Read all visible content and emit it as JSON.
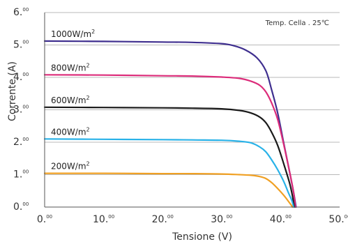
{
  "chart_data": {
    "type": "line",
    "xlabel": "Tensione (V)",
    "ylabel": "Corrente (A)",
    "xlim": [
      0,
      50
    ],
    "ylim": [
      0,
      6
    ],
    "x_ticks": [
      0,
      10,
      20,
      30,
      40,
      50
    ],
    "y_ticks": [
      0,
      1,
      2,
      3,
      4,
      5,
      6
    ],
    "x_tick_labels": [
      "0.",
      "10.",
      "20.",
      "30.",
      "40.",
      "50."
    ],
    "y_tick_labels": [
      "0.",
      "1.",
      "2.",
      "3.",
      "4.",
      "5.",
      "6."
    ],
    "tick_superscript": "00",
    "grid": "horizontal",
    "annotation": "Temp. Cella . 25℃",
    "series": [
      {
        "name": "1000W/m",
        "name_superscript": "2",
        "color": "#3f2f8f",
        "points": [
          [
            0,
            5.12
          ],
          [
            10,
            5.11
          ],
          [
            20,
            5.09
          ],
          [
            25,
            5.08
          ],
          [
            30,
            5.04
          ],
          [
            32,
            4.98
          ],
          [
            34,
            4.85
          ],
          [
            36,
            4.6
          ],
          [
            37.5,
            4.2
          ],
          [
            38.5,
            3.6
          ],
          [
            39.5,
            2.9
          ],
          [
            40.5,
            2.0
          ],
          [
            41.5,
            1.1
          ],
          [
            42.2,
            0.45
          ],
          [
            42.6,
            0
          ]
        ]
      },
      {
        "name": "800W/m",
        "name_superscript": "2",
        "color": "#dc2c7a",
        "points": [
          [
            0,
            4.08
          ],
          [
            10,
            4.07
          ],
          [
            20,
            4.05
          ],
          [
            25,
            4.04
          ],
          [
            30,
            4.01
          ],
          [
            33,
            3.97
          ],
          [
            35,
            3.88
          ],
          [
            36.5,
            3.75
          ],
          [
            37.5,
            3.55
          ],
          [
            38.5,
            3.2
          ],
          [
            39.5,
            2.7
          ],
          [
            40.5,
            1.95
          ],
          [
            41.5,
            1.1
          ],
          [
            42.2,
            0.45
          ],
          [
            42.5,
            0
          ]
        ]
      },
      {
        "name": "600W/m",
        "name_superscript": "2",
        "color": "#1a1a1a",
        "points": [
          [
            0,
            3.08
          ],
          [
            10,
            3.07
          ],
          [
            20,
            3.06
          ],
          [
            25,
            3.05
          ],
          [
            30,
            3.03
          ],
          [
            33,
            2.98
          ],
          [
            35,
            2.9
          ],
          [
            36.5,
            2.77
          ],
          [
            37.5,
            2.6
          ],
          [
            38.5,
            2.3
          ],
          [
            39.5,
            1.9
          ],
          [
            40.5,
            1.35
          ],
          [
            41.5,
            0.75
          ],
          [
            42,
            0.35
          ],
          [
            42.3,
            0
          ]
        ]
      },
      {
        "name": "400W/m",
        "name_superscript": "2",
        "color": "#29b2e8",
        "points": [
          [
            0,
            2.1
          ],
          [
            10,
            2.09
          ],
          [
            20,
            2.08
          ],
          [
            25,
            2.07
          ],
          [
            30,
            2.06
          ],
          [
            33,
            2.03
          ],
          [
            35,
            1.98
          ],
          [
            36.5,
            1.85
          ],
          [
            37.5,
            1.7
          ],
          [
            38.5,
            1.45
          ],
          [
            39.5,
            1.15
          ],
          [
            40.5,
            0.8
          ],
          [
            41.3,
            0.45
          ],
          [
            41.9,
            0.2
          ],
          [
            42.2,
            0
          ]
        ]
      },
      {
        "name": "200W/m",
        "name_superscript": "2",
        "color": "#f0a023",
        "points": [
          [
            0,
            1.04
          ],
          [
            10,
            1.04
          ],
          [
            20,
            1.03
          ],
          [
            25,
            1.03
          ],
          [
            30,
            1.02
          ],
          [
            33,
            1.0
          ],
          [
            35,
            0.98
          ],
          [
            36.5,
            0.94
          ],
          [
            37.5,
            0.88
          ],
          [
            38.5,
            0.75
          ],
          [
            39.5,
            0.57
          ],
          [
            40.5,
            0.37
          ],
          [
            41.3,
            0.18
          ],
          [
            41.8,
            0.06
          ],
          [
            42,
            0
          ]
        ]
      }
    ]
  }
}
